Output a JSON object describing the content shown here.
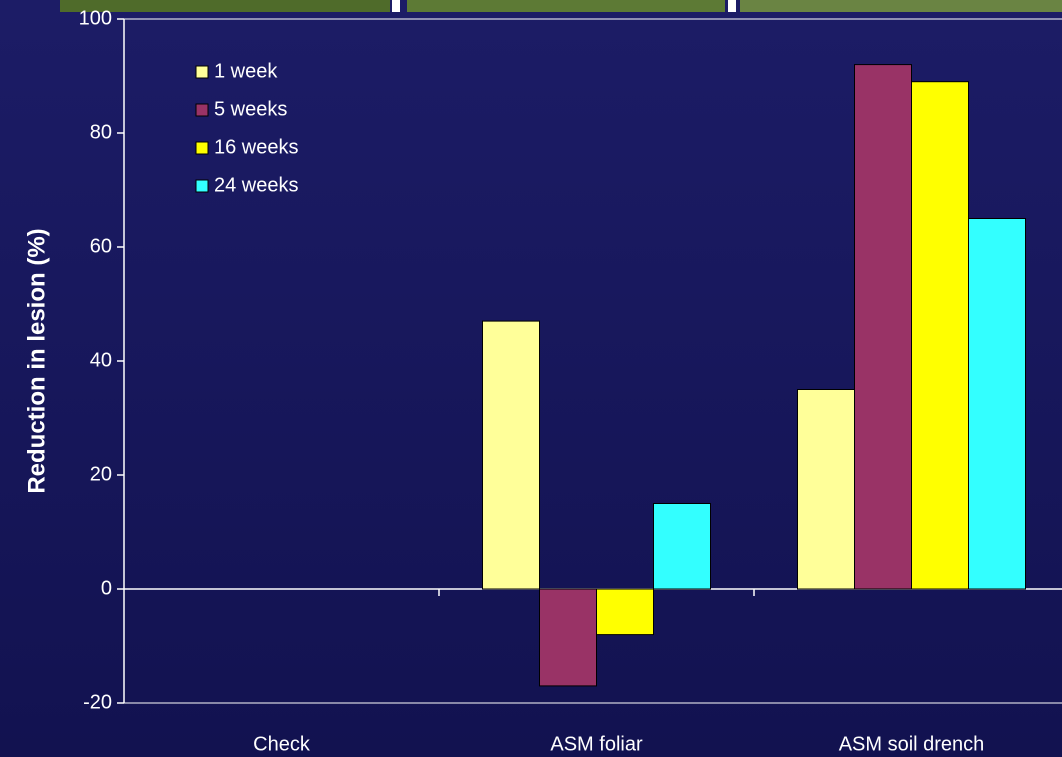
{
  "chart_data": {
    "type": "bar",
    "y_label": "Reduction in lesion (%)",
    "categories": [
      "Check",
      "ASM foliar",
      "ASM soil drench"
    ],
    "series": [
      {
        "name": "1 week",
        "color": "#ffff99",
        "values": [
          0,
          47,
          35
        ]
      },
      {
        "name": "5 weeks",
        "color": "#993366",
        "values": [
          0,
          -17,
          92
        ]
      },
      {
        "name": "16 weeks",
        "color": "#ffff00",
        "values": [
          0,
          -8,
          89
        ]
      },
      {
        "name": "24 weeks",
        "color": "#33ffff",
        "values": [
          0,
          15,
          65
        ]
      }
    ],
    "ylim": [
      -20,
      100
    ],
    "yticks": [
      -20,
      0,
      20,
      40,
      60,
      80,
      100
    ],
    "grid": false,
    "legend": "top-left"
  }
}
